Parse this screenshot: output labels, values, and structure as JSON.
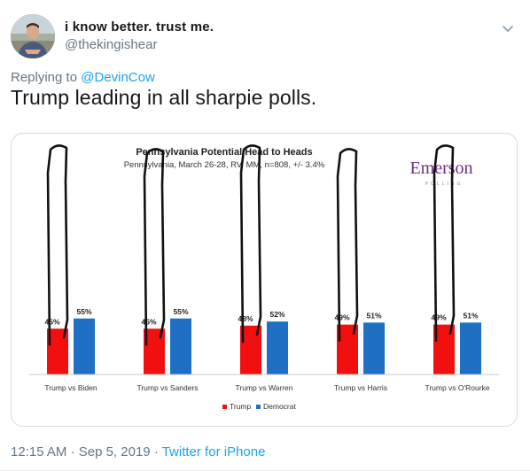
{
  "tweet": {
    "author": {
      "display_name": "i know better. trust me.",
      "handle": "@thekingishear",
      "avatar_icon": "avatar-photo"
    },
    "menu_icon": "chevron-down-icon",
    "reply_prefix": "Replying to",
    "reply_to": "@DevinCow",
    "text": "Trump leading in all sharpie polls.",
    "time": "12:15 AM",
    "separator": "·",
    "date": "Sep 5, 2019",
    "source": "Twitter for iPhone"
  },
  "colors": {
    "trump": "#f20f0f",
    "democrat": "#1f6fc5",
    "link": "#1da1f2",
    "muted": "#657786",
    "sharpie": "#111111"
  },
  "chart_data": {
    "type": "bar",
    "title": "Pennsylvania Potential Head to Heads",
    "subtitle": "Pennsylvania, March 26-28, RV, MM, n=808, +/- 3.4%",
    "logo": "Emerson",
    "logo_sub": "POLLING",
    "categories": [
      "Trump vs Biden",
      "Trump vs Sanders",
      "Trump vs Warren",
      "Trump vs Harris",
      "Trump vs O'Rourke"
    ],
    "series": [
      {
        "name": "Trump",
        "values": [
          45,
          45,
          48,
          49,
          49
        ],
        "labels": [
          "45%",
          "45%",
          "48%",
          "49%",
          "49%"
        ]
      },
      {
        "name": "Democrat",
        "values": [
          55,
          55,
          52,
          51,
          51
        ],
        "labels": [
          "55%",
          "55%",
          "52%",
          "51%",
          "51%"
        ]
      }
    ],
    "ylim": [
      0,
      100
    ],
    "legend_position": "bottom",
    "grid": false,
    "annotations": [
      "sharpie marks extending Trump bars"
    ]
  }
}
